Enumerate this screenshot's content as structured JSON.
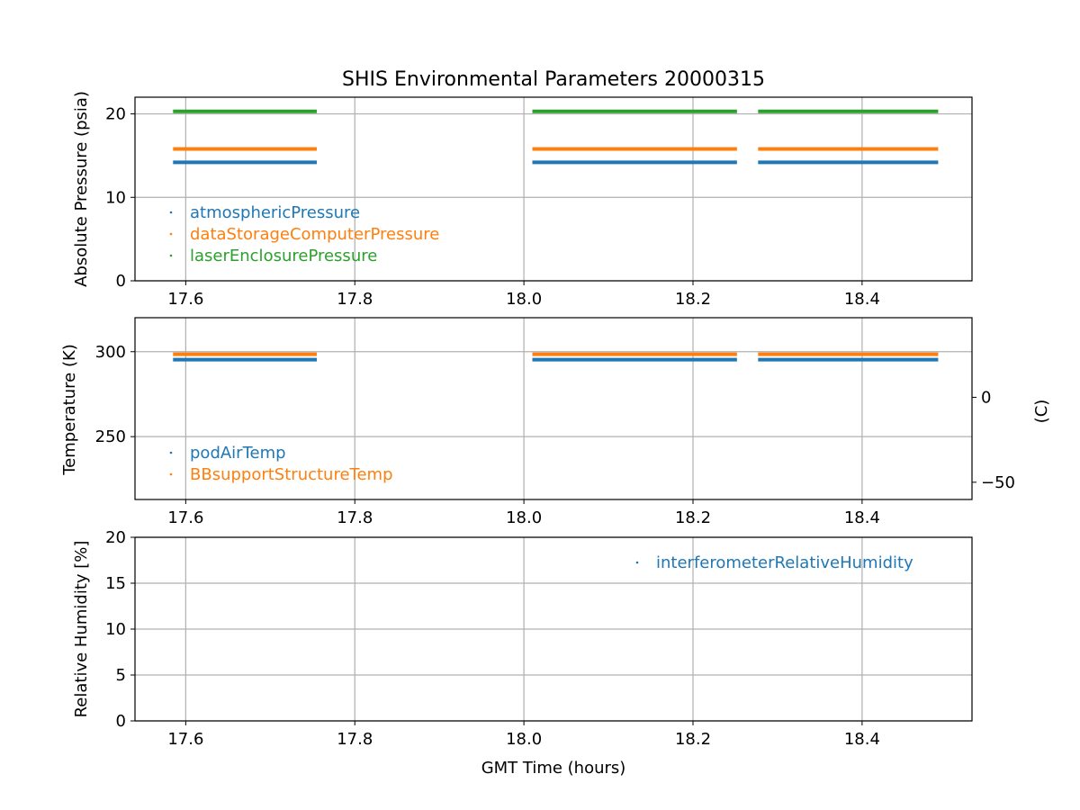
{
  "chart_data": {
    "type": "scatter",
    "title": "SHIS Environmental Parameters 20000315",
    "xlabel": "GMT Time (hours)",
    "xlim": [
      17.54,
      18.53
    ],
    "x_ticks": [
      17.6,
      17.8,
      18.0,
      18.2,
      18.4
    ],
    "x_tick_labels": [
      "17.6",
      "17.8",
      "18.0",
      "18.2",
      "18.4"
    ],
    "grid": true,
    "data_segments": [
      [
        17.585,
        17.755
      ],
      [
        18.01,
        18.252
      ],
      [
        18.277,
        18.49
      ]
    ],
    "panels": [
      {
        "ylabel": "Absolute Pressure (psia)",
        "ylim": [
          0,
          22
        ],
        "y_ticks": [
          0,
          10,
          20
        ],
        "y_tick_labels": [
          "0",
          "10",
          "20"
        ],
        "legend_position": "lower-left",
        "series": [
          {
            "name": "atmosphericPressure",
            "color": "#1f77b4",
            "value": 14.2
          },
          {
            "name": "dataStorageComputerPressure",
            "color": "#ff7f0e",
            "value": 15.8
          },
          {
            "name": "laserEnclosurePressure",
            "color": "#2ca02c",
            "value": 20.3
          }
        ]
      },
      {
        "ylabel": "Temperature (K)",
        "ylim": [
          213,
          320
        ],
        "y_ticks": [
          250,
          300
        ],
        "y_tick_labels": [
          "250",
          "300"
        ],
        "secondary_ylabel": "(C)",
        "secondary_y_ticks": [
          0,
          -50
        ],
        "secondary_y_tick_labels": [
          "0",
          "−50"
        ],
        "legend_position": "lower-left",
        "series": [
          {
            "name": "podAirTemp",
            "color": "#1f77b4",
            "value": 295.3
          },
          {
            "name": "BBsupportStructureTemp",
            "color": "#ff7f0e",
            "value": 298.5
          }
        ]
      },
      {
        "ylabel": "Relative Humidity [%]",
        "ylim": [
          0,
          20
        ],
        "y_ticks": [
          0,
          5,
          10,
          15,
          20
        ],
        "y_tick_labels": [
          "0",
          "5",
          "10",
          "15",
          "20"
        ],
        "legend_position": "upper-right",
        "series": [
          {
            "name": "interferometerRelativeHumidity",
            "color": "#1f77b4",
            "value": null
          }
        ]
      }
    ]
  }
}
